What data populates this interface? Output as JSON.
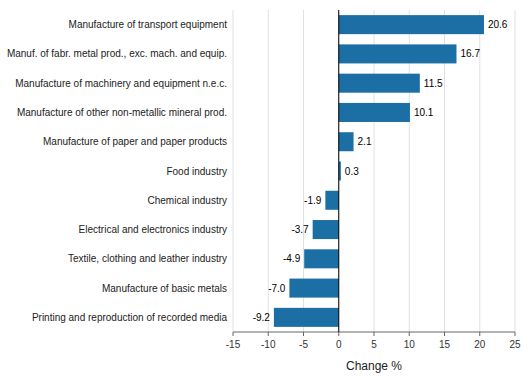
{
  "chart_data": {
    "type": "bar",
    "orientation": "horizontal",
    "categories": [
      "Printing and reproduction of recorded media",
      "Manufacture of basic metals",
      "Textile, clothing and leather industry",
      "Electrical and electronics industry",
      "Chemical industry",
      "Food industry",
      "Manufacture of paper and paper products",
      "Manufacture of other non-metallic mineral prod.",
      "Manufacture of machinery and equipment n.e.c.",
      "Manuf. of fabr. metal prod., exc. mach. and equip.",
      "Manufacture of transport equipment"
    ],
    "values": [
      -9.2,
      -7.0,
      -4.9,
      -3.7,
      -1.9,
      0.3,
      2.1,
      10.1,
      11.5,
      16.7,
      20.6
    ],
    "value_labels": [
      "-9.2",
      "-7.0",
      "-4.9",
      "-3.7",
      "-1.9",
      "0.3",
      "2.1",
      "10.1",
      "11.5",
      "16.7",
      "20.6"
    ],
    "color": "#1c6fa5",
    "xlabel": "Change %",
    "xlim": [
      -15,
      25
    ],
    "xticks": [
      -15,
      -10,
      -5,
      0,
      5,
      10,
      15,
      20,
      25
    ],
    "grid": true,
    "data_labels": true
  }
}
